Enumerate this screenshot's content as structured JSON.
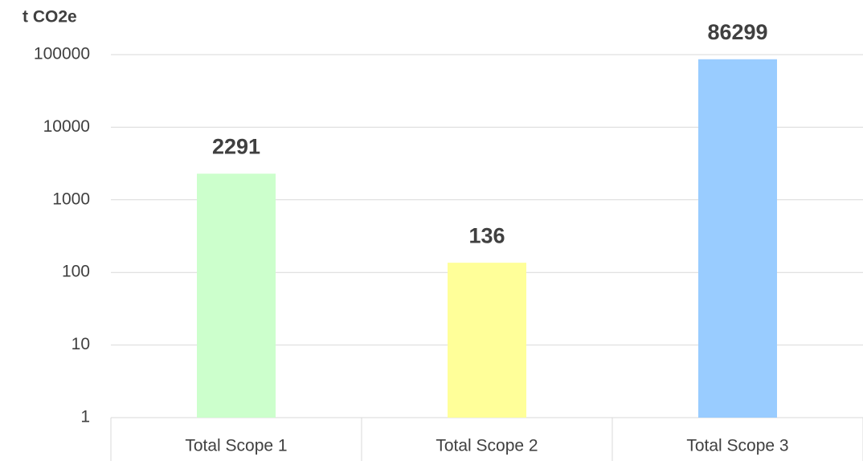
{
  "chart_data": {
    "type": "bar",
    "y_label": "t CO2e",
    "categories": [
      "Total Scope 1",
      "Total Scope 2",
      "Total Scope 3"
    ],
    "values": [
      2291,
      136,
      86299
    ],
    "colors": [
      "#ccffcc",
      "#ffff99",
      "#99ccff"
    ],
    "ylim": [
      1,
      100000
    ],
    "yticks": [
      1,
      10,
      100,
      1000,
      10000,
      100000
    ],
    "log_scale": true,
    "grid": true
  }
}
